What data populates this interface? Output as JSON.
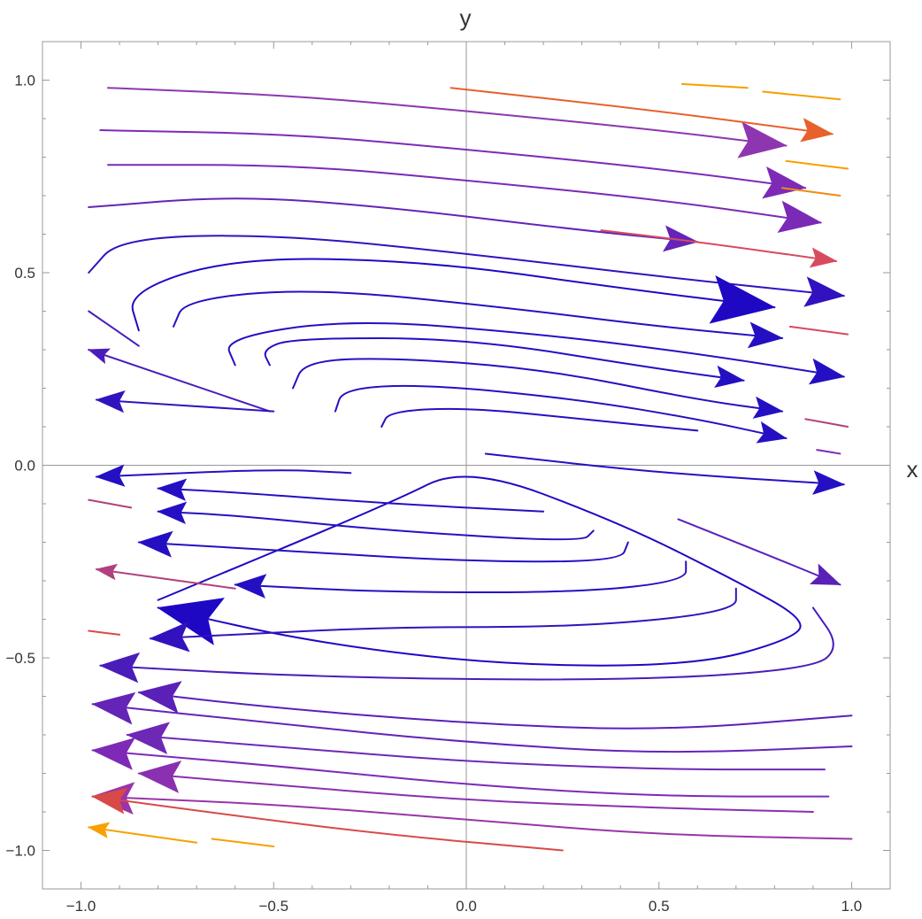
{
  "chart_data": {
    "type": "streamplot",
    "title": "",
    "xlabel": "x",
    "ylabel": "y",
    "xlim": [
      -1.1,
      1.1
    ],
    "ylim": [
      -1.1,
      1.1
    ],
    "xticks": [
      -1.0,
      -0.5,
      0.0,
      0.5,
      1.0
    ],
    "yticks": [
      -1.0,
      -0.5,
      0.0,
      0.5,
      1.0
    ],
    "xtick_labels": [
      "-1.0",
      "-0.5",
      "0.0",
      "0.5",
      "1.0"
    ],
    "ytick_labels": [
      "-1.0",
      "-0.5",
      "0.0",
      "0.5",
      "1.0"
    ],
    "grid": false,
    "axes_through_origin": true,
    "color_scale": [
      "#1a00c4",
      "#5a20b8",
      "#8a30b0",
      "#d84a60",
      "#f07020",
      "#ff9a00"
    ],
    "streamlines": [
      {
        "points": [
          [
            -0.93,
            0.98
          ],
          [
            -0.45,
            0.96
          ],
          [
            0,
            0.92
          ],
          [
            0.5,
            0.87
          ],
          [
            0.83,
            0.83
          ]
        ],
        "arrow": "end",
        "color": "#8e36b0",
        "speed": 0.7
      },
      {
        "points": [
          [
            -0.95,
            0.87
          ],
          [
            -0.45,
            0.86
          ],
          [
            0,
            0.82
          ],
          [
            0.5,
            0.77
          ],
          [
            0.88,
            0.72
          ]
        ],
        "arrow": "end",
        "color": "#7e2ab6",
        "speed": 0.6
      },
      {
        "points": [
          [
            -0.93,
            0.78
          ],
          [
            -0.45,
            0.78
          ],
          [
            0,
            0.74
          ],
          [
            0.5,
            0.69
          ],
          [
            0.92,
            0.63
          ]
        ],
        "arrow": "end",
        "color": "#7a2ab6",
        "speed": 0.6
      },
      {
        "points": [
          [
            -0.98,
            0.67
          ],
          [
            -0.6,
            0.7
          ],
          [
            -0.2,
            0.67
          ],
          [
            0.3,
            0.61
          ],
          [
            0.6,
            0.58
          ]
        ],
        "arrow": "end",
        "color": "#6424b8",
        "speed": 0.45
      },
      {
        "points": [
          [
            -0.98,
            0.5
          ],
          [
            -0.9,
            0.59
          ],
          [
            -0.5,
            0.6
          ],
          [
            0,
            0.55
          ],
          [
            0.5,
            0.49
          ],
          [
            0.98,
            0.44
          ]
        ],
        "arrow": "end",
        "color": "#3212bf",
        "speed": 0.55
      },
      {
        "points": [
          [
            -0.85,
            0.35
          ],
          [
            -0.88,
            0.45
          ],
          [
            -0.6,
            0.54
          ],
          [
            -0.1,
            0.53
          ],
          [
            0.4,
            0.46
          ],
          [
            0.8,
            0.41
          ]
        ],
        "arrow": "end",
        "color": "#1e08c4",
        "speed": 1.0
      },
      {
        "points": [
          [
            -0.76,
            0.36
          ],
          [
            -0.73,
            0.43
          ],
          [
            -0.4,
            0.46
          ],
          [
            0.1,
            0.41
          ],
          [
            0.5,
            0.36
          ],
          [
            0.82,
            0.33
          ]
        ],
        "arrow": "end",
        "color": "#2410c2",
        "speed": 0.45
      },
      {
        "points": [
          [
            -0.6,
            0.26
          ],
          [
            -0.63,
            0.33
          ],
          [
            -0.3,
            0.38
          ],
          [
            0.2,
            0.34
          ],
          [
            0.6,
            0.29
          ],
          [
            0.98,
            0.23
          ]
        ],
        "arrow": "end",
        "color": "#2410c2",
        "speed": 0.45
      },
      {
        "points": [
          [
            -0.51,
            0.26
          ],
          [
            -0.53,
            0.3
          ],
          [
            -0.45,
            0.33
          ],
          [
            0,
            0.33
          ],
          [
            0.5,
            0.25
          ],
          [
            0.72,
            0.22
          ]
        ],
        "arrow": "end",
        "color": "#2410c2",
        "speed": 0.35
      },
      {
        "points": [
          [
            -0.45,
            0.2
          ],
          [
            -0.42,
            0.27
          ],
          [
            -0.2,
            0.28
          ],
          [
            0.2,
            0.25
          ],
          [
            0.6,
            0.17
          ],
          [
            0.82,
            0.14
          ]
        ],
        "arrow": "end",
        "color": "#2410c2",
        "speed": 0.35
      },
      {
        "points": [
          [
            -0.34,
            0.14
          ],
          [
            -0.32,
            0.2
          ],
          [
            -0.1,
            0.21
          ],
          [
            0.3,
            0.17
          ],
          [
            0.6,
            0.12
          ],
          [
            0.83,
            0.07
          ]
        ],
        "arrow": "end",
        "color": "#2410c2",
        "speed": 0.35
      },
      {
        "points": [
          [
            -0.22,
            0.1
          ],
          [
            -0.2,
            0.14
          ],
          [
            0,
            0.15
          ],
          [
            0.3,
            0.12
          ],
          [
            0.6,
            0.09
          ]
        ],
        "arrow": "none",
        "color": "#2410c2",
        "speed": 0.3
      },
      {
        "points": [
          [
            0.05,
            0.03
          ],
          [
            0.5,
            -0.02
          ],
          [
            0.98,
            -0.05
          ]
        ],
        "arrow": "end",
        "color": "#2410c2",
        "speed": 0.4
      },
      {
        "points": [
          [
            0.55,
            -0.14
          ],
          [
            0.8,
            -0.24
          ],
          [
            0.97,
            -0.31
          ]
        ],
        "arrow": "end",
        "color": "#5a20b8",
        "speed": 0.35
      },
      {
        "points": [
          [
            0.35,
            0.61
          ],
          [
            0.6,
            0.58
          ],
          [
            0.96,
            0.53
          ]
        ],
        "arrow": "end",
        "color": "#d84a60",
        "speed": 0.3
      },
      {
        "points": [
          [
            -0.04,
            0.98
          ],
          [
            0.5,
            0.92
          ],
          [
            0.95,
            0.86
          ]
        ],
        "arrow": "end",
        "color": "#e8602c",
        "speed": 0.4
      },
      {
        "points": [
          [
            -0.8,
            -0.35
          ],
          [
            -0.2,
            -0.1
          ],
          [
            0,
            0
          ],
          [
            0.4,
            -0.15
          ],
          [
            0.7,
            -0.3
          ],
          [
            0.88,
            -0.4
          ],
          [
            0.85,
            -0.45
          ],
          [
            0.6,
            -0.52
          ],
          [
            0.1,
            -0.52
          ],
          [
            -0.4,
            -0.46
          ],
          [
            -0.8,
            -0.37
          ]
        ],
        "arrow": "end",
        "color": "#1e08c4",
        "speed": 1.0
      },
      {
        "points": [
          [
            -0.96,
            -0.03
          ],
          [
            -0.5,
            -0.01
          ],
          [
            -0.3,
            -0.02
          ]
        ],
        "arrow": "start",
        "color": "#2410c2",
        "speed": 0.35
      },
      {
        "points": [
          [
            0.2,
            -0.12
          ],
          [
            -0.2,
            -0.1
          ],
          [
            -0.6,
            -0.07
          ],
          [
            -0.8,
            -0.06
          ]
        ],
        "arrow": "end",
        "color": "#2410c2",
        "speed": 0.35
      },
      {
        "points": [
          [
            0.33,
            -0.17
          ],
          [
            0.3,
            -0.2
          ],
          [
            -0.2,
            -0.17
          ],
          [
            -0.6,
            -0.13
          ],
          [
            -0.8,
            -0.12
          ]
        ],
        "arrow": "end",
        "color": "#2410c2",
        "speed": 0.35
      },
      {
        "points": [
          [
            0.42,
            -0.2
          ],
          [
            0.4,
            -0.25
          ],
          [
            0,
            -0.25
          ],
          [
            -0.5,
            -0.22
          ],
          [
            -0.85,
            -0.2
          ]
        ],
        "arrow": "end",
        "color": "#2410c2",
        "speed": 0.45
      },
      {
        "points": [
          [
            0.57,
            -0.25
          ],
          [
            0.57,
            -0.3
          ],
          [
            0.3,
            -0.33
          ],
          [
            -0.2,
            -0.33
          ],
          [
            -0.6,
            -0.31
          ]
        ],
        "arrow": "end",
        "color": "#2410c2",
        "speed": 0.4
      },
      {
        "points": [
          [
            0.7,
            -0.32
          ],
          [
            0.7,
            -0.38
          ],
          [
            0.3,
            -0.42
          ],
          [
            -0.2,
            -0.42
          ],
          [
            -0.6,
            -0.44
          ],
          [
            -0.82,
            -0.45
          ]
        ],
        "arrow": "end",
        "color": "#3212bf",
        "speed": 0.55
      },
      {
        "points": [
          [
            0.9,
            -0.37
          ],
          [
            0.97,
            -0.47
          ],
          [
            0.9,
            -0.53
          ],
          [
            0.4,
            -0.56
          ],
          [
            -0.4,
            -0.55
          ],
          [
            -0.95,
            -0.52
          ]
        ],
        "arrow": "end",
        "color": "#4a1cba",
        "speed": 0.55
      },
      {
        "points": [
          [
            1.0,
            -0.65
          ],
          [
            0.5,
            -0.69
          ],
          [
            0,
            -0.67
          ],
          [
            -0.5,
            -0.63
          ],
          [
            -0.85,
            -0.59
          ]
        ],
        "arrow": "end",
        "color": "#5a20b8",
        "speed": 0.6
      },
      {
        "points": [
          [
            1.0,
            -0.73
          ],
          [
            0.5,
            -0.75
          ],
          [
            0,
            -0.72
          ],
          [
            -0.5,
            -0.67
          ],
          [
            -0.97,
            -0.62
          ]
        ],
        "arrow": "end",
        "color": "#6424b8",
        "speed": 0.6
      },
      {
        "points": [
          [
            0.93,
            -0.79
          ],
          [
            0.5,
            -0.79
          ],
          [
            0,
            -0.77
          ],
          [
            -0.5,
            -0.73
          ],
          [
            -0.88,
            -0.7
          ]
        ],
        "arrow": "end",
        "color": "#6e28b6",
        "speed": 0.6
      },
      {
        "points": [
          [
            0.94,
            -0.86
          ],
          [
            0.5,
            -0.86
          ],
          [
            0,
            -0.83
          ],
          [
            -0.5,
            -0.78
          ],
          [
            -0.97,
            -0.74
          ]
        ],
        "arrow": "end",
        "color": "#7e2ab6",
        "speed": 0.6
      },
      {
        "points": [
          [
            0.9,
            -0.9
          ],
          [
            0.5,
            -0.89
          ],
          [
            0,
            -0.87
          ],
          [
            -0.5,
            -0.83
          ],
          [
            -0.85,
            -0.8
          ]
        ],
        "arrow": "end",
        "color": "#8a30b0",
        "speed": 0.6
      },
      {
        "points": [
          [
            1.0,
            -0.97
          ],
          [
            0.5,
            -0.96
          ],
          [
            0,
            -0.92
          ],
          [
            -0.5,
            -0.88
          ],
          [
            -0.97,
            -0.86
          ]
        ],
        "arrow": "end",
        "color": "#9a34a8",
        "speed": 0.6
      },
      {
        "points": [
          [
            0.25,
            -1.0
          ],
          [
            -0.2,
            -0.96
          ],
          [
            -0.6,
            -0.91
          ],
          [
            -0.97,
            -0.86
          ]
        ],
        "arrow": "end",
        "color": "#d84a48",
        "speed": 0.45
      },
      {
        "points": [
          [
            -0.98,
            0.4
          ],
          [
            -0.85,
            0.31
          ]
        ],
        "arrow": "none",
        "color": "#4a1cba",
        "speed": 0.2
      },
      {
        "points": [
          [
            -0.51,
            0.14
          ],
          [
            -0.98,
            0.3
          ]
        ],
        "arrow": "end",
        "color": "#4a1cba",
        "speed": 0.2
      },
      {
        "points": [
          [
            -0.5,
            0.14
          ],
          [
            -0.96,
            0.17
          ]
        ],
        "arrow": "end",
        "color": "#3212bf",
        "speed": 0.35
      },
      {
        "points": [
          [
            -0.6,
            -0.32
          ],
          [
            -0.96,
            -0.27
          ]
        ],
        "arrow": "end",
        "color": "#b0407e",
        "speed": 0.2
      },
      {
        "points": [
          [
            -0.87,
            -0.11
          ],
          [
            -0.98,
            -0.09
          ]
        ],
        "arrow": "none",
        "color": "#b0407e",
        "speed": 0.2
      },
      {
        "points": [
          [
            -0.9,
            -0.44
          ],
          [
            -0.98,
            -0.43
          ]
        ],
        "arrow": "none",
        "color": "#d84a48",
        "speed": 0.2
      },
      {
        "points": [
          [
            -0.7,
            -0.98
          ],
          [
            -0.98,
            -0.94
          ]
        ],
        "arrow": "end",
        "color": "#f7a000",
        "speed": 0.2
      },
      {
        "points": [
          [
            -0.5,
            -0.99
          ],
          [
            -0.66,
            -0.97
          ]
        ],
        "arrow": "none",
        "color": "#f7a000",
        "speed": 0.2
      },
      {
        "points": [
          [
            0.56,
            0.99
          ],
          [
            0.73,
            0.98
          ]
        ],
        "arrow": "none",
        "color": "#f7a000",
        "speed": 0.2
      },
      {
        "points": [
          [
            0.77,
            0.97
          ],
          [
            0.97,
            0.95
          ]
        ],
        "arrow": "none",
        "color": "#f7a000",
        "speed": 0.2
      },
      {
        "points": [
          [
            0.83,
            0.79
          ],
          [
            0.99,
            0.77
          ]
        ],
        "arrow": "none",
        "color": "#f7a000",
        "speed": 0.2
      },
      {
        "points": [
          [
            0.82,
            0.72
          ],
          [
            0.97,
            0.7
          ]
        ],
        "arrow": "none",
        "color": "#f08a10",
        "speed": 0.2
      },
      {
        "points": [
          [
            0.84,
            0.36
          ],
          [
            0.99,
            0.34
          ]
        ],
        "arrow": "none",
        "color": "#d84a60",
        "speed": 0.2
      },
      {
        "points": [
          [
            0.88,
            0.12
          ],
          [
            0.99,
            0.1
          ]
        ],
        "arrow": "none",
        "color": "#b0407e",
        "speed": 0.2
      },
      {
        "points": [
          [
            0.91,
            0.04
          ],
          [
            0.97,
            0.03
          ]
        ],
        "arrow": "none",
        "color": "#7e2ab6",
        "speed": 0.2
      }
    ]
  }
}
